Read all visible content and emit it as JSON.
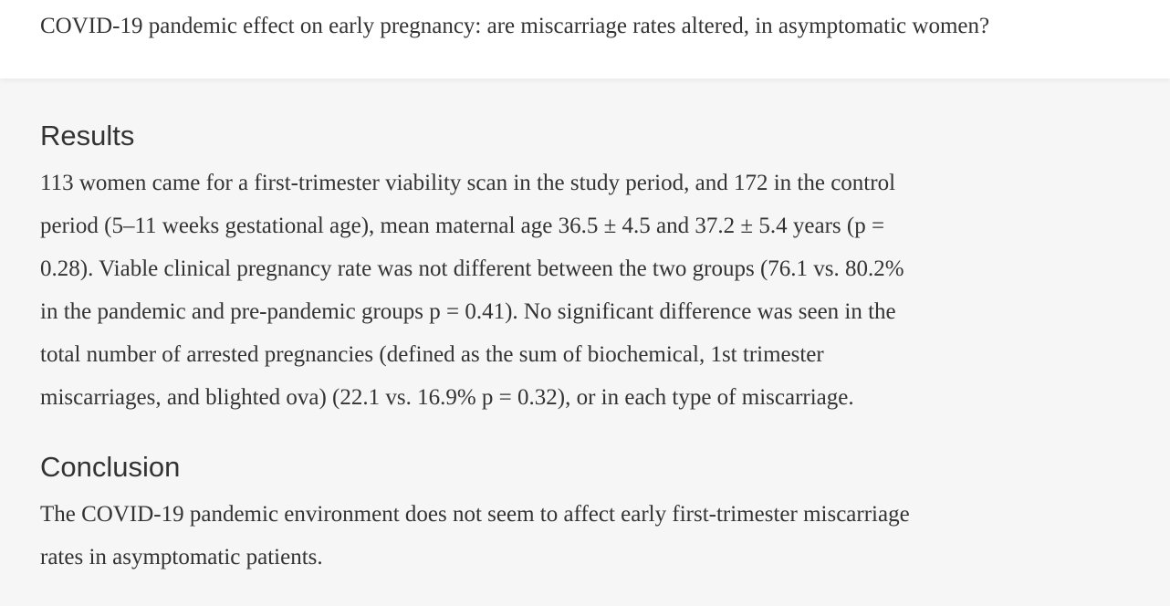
{
  "header": {
    "title": "COVID-19 pandemic effect on early pregnancy: are miscarriage rates altered, in asymptomatic women?"
  },
  "results": {
    "heading": "Results",
    "lines": [
      "113 women came for a first-trimester viability scan in the study period, and 172 in the control",
      "period (5–11 weeks gestational age), mean maternal age 36.5 ± 4.5 and 37.2 ± 5.4 years (p =",
      "0.28). Viable clinical pregnancy rate was not different between the two groups (76.1 vs. 80.2%",
      "in the pandemic and pre-pandemic groups p = 0.41). No significant difference was seen in the",
      "total number of arrested pregnancies (defined as the sum of biochemical, 1st trimester",
      "miscarriages, and blighted ova) (22.1 vs. 16.9% p = 0.32), or in each type of miscarriage."
    ]
  },
  "conclusion": {
    "heading": "Conclusion",
    "lines": [
      "The COVID-19 pandemic environment does not seem to affect early first-trimester miscarriage",
      "rates in asymptomatic patients."
    ]
  }
}
